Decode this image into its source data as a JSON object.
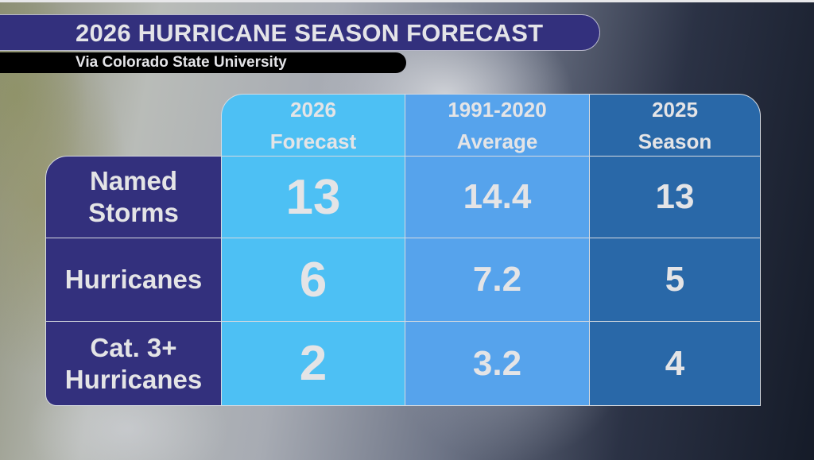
{
  "header": {
    "title": "2026 HURRICANE SEASON FORECAST",
    "subtitle": "Via Colorado State University"
  },
  "colors": {
    "title_bar": "#33307d",
    "subtitle_bar": "#000000",
    "col_2026": "#4dc0f4",
    "col_avg": "#56a3ec",
    "col_2025": "#2968a8",
    "row_label": "#33307d",
    "text": "#e4e4e6"
  },
  "table": {
    "columns": [
      {
        "line1": "2026",
        "line2": "Forecast"
      },
      {
        "line1": "1991-2020",
        "line2": "Average"
      },
      {
        "line1": "2025",
        "line2": "Season"
      }
    ],
    "rows": [
      {
        "label_line1": "Named",
        "label_line2": "Storms",
        "values": [
          "13",
          "14.4",
          "13"
        ]
      },
      {
        "label_line1": "Hurricanes",
        "label_line2": "",
        "values": [
          "6",
          "7.2",
          "5"
        ]
      },
      {
        "label_line1": "Cat. 3+",
        "label_line2": "Hurricanes",
        "values": [
          "2",
          "3.2",
          "4"
        ]
      }
    ]
  }
}
